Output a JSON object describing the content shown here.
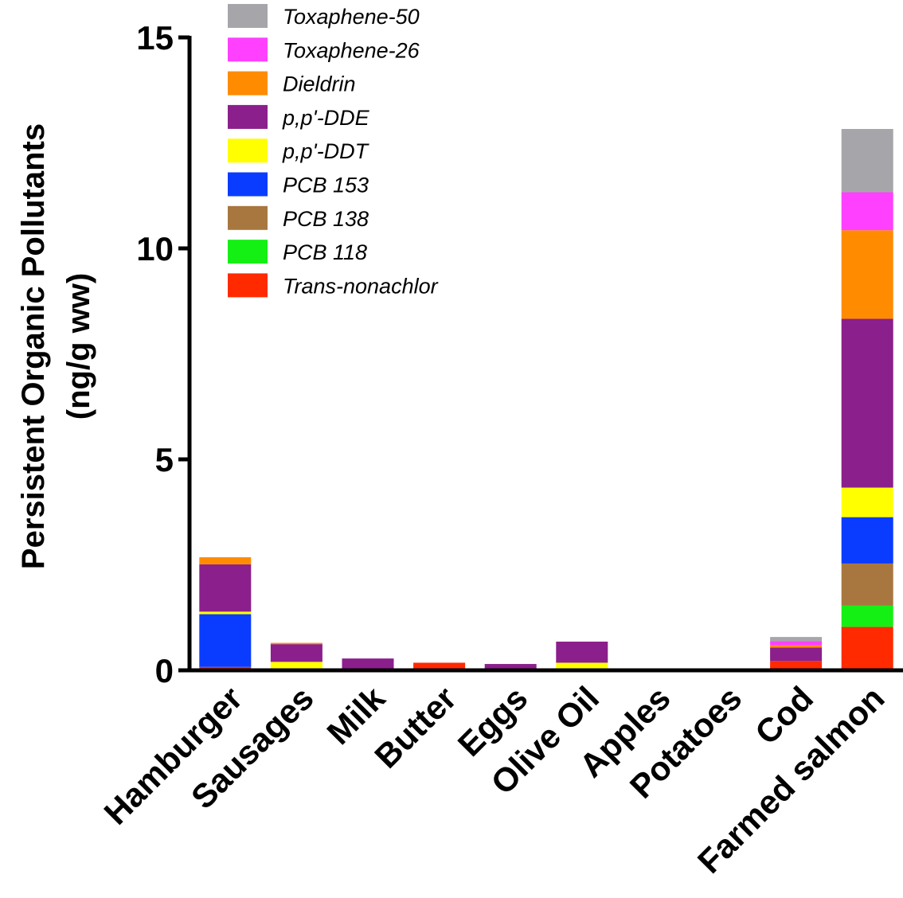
{
  "chart_data": {
    "type": "bar",
    "stacked": true,
    "title": "",
    "xlabel": "",
    "ylabel": "Persistent Organic Pollutants",
    "ylabel_unit": "(ng/g ww)",
    "ylim": [
      0,
      15
    ],
    "yticks": [
      0,
      5,
      10,
      15
    ],
    "ytick_labels": [
      "0",
      "5",
      "10",
      "15"
    ],
    "grid": false,
    "legend_position": "top-left",
    "categories": [
      "Hamburger",
      "Sausages",
      "Milk",
      "Butter",
      "Eggs",
      "Olive Oil",
      "Apples",
      "Potatoes",
      "Cod",
      "Farmed salmon"
    ],
    "series": [
      {
        "name": "Trans-nonachlor",
        "color": "#ff2a00",
        "values": [
          0.08,
          0.0,
          0.0,
          0.18,
          0.0,
          0.0,
          0.0,
          0.0,
          0.22,
          1.03
        ]
      },
      {
        "name": "PCB 118",
        "color": "#14f014",
        "values": [
          0.0,
          0.0,
          0.0,
          0.0,
          0.0,
          0.0,
          0.0,
          0.0,
          0.0,
          0.5
        ]
      },
      {
        "name": "PCB 138",
        "color": "#a8773f",
        "values": [
          0.0,
          0.0,
          0.0,
          0.0,
          0.0,
          0.0,
          0.0,
          0.0,
          0.0,
          1.0
        ]
      },
      {
        "name": "PCB 153",
        "color": "#0a3cff",
        "values": [
          1.25,
          0.0,
          0.0,
          0.0,
          0.0,
          0.0,
          0.0,
          0.0,
          0.0,
          1.1
        ]
      },
      {
        "name": "p,p'-DDT",
        "color": "#ffff00",
        "values": [
          0.06,
          0.2,
          0.0,
          0.0,
          0.0,
          0.18,
          0.0,
          0.0,
          0.0,
          0.7
        ]
      },
      {
        "name": "p,p'-DDE",
        "color": "#8b1f8b",
        "values": [
          1.12,
          0.42,
          0.28,
          0.0,
          0.15,
          0.5,
          0.0,
          0.0,
          0.32,
          4.0
        ]
      },
      {
        "name": "Dieldrin",
        "color": "#ff8c00",
        "values": [
          0.17,
          0.03,
          0.0,
          0.0,
          0.0,
          0.0,
          0.0,
          0.0,
          0.05,
          2.1
        ]
      },
      {
        "name": "Toxaphene-26",
        "color": "#ff40ff",
        "values": [
          0.0,
          0.0,
          0.0,
          0.0,
          0.0,
          0.0,
          0.0,
          0.0,
          0.1,
          0.9
        ]
      },
      {
        "name": "Toxaphene-50",
        "color": "#a6a6aa",
        "values": [
          0.0,
          0.0,
          0.0,
          0.0,
          0.0,
          0.0,
          0.0,
          0.0,
          0.1,
          1.5
        ]
      }
    ]
  }
}
